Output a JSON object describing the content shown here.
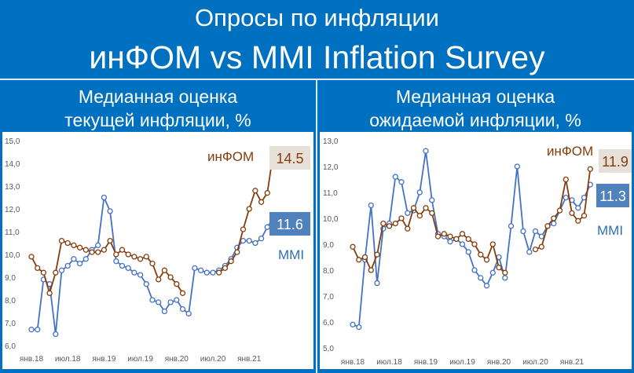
{
  "header": {
    "title_line1": "Опросы по инфляции",
    "title_line2": "инФОМ vs MMI Inflation Survey"
  },
  "colors": {
    "background": "#0070c0",
    "infom": "#843c0c",
    "mmi": "#4472c4",
    "mmi_label": "#2f6eba"
  },
  "chart_data": [
    {
      "type": "line",
      "title_line1": "Медианная оценка",
      "title_line2": "текущей инфляции, %",
      "ylim": [
        6.0,
        15.0
      ],
      "yticks": [
        "6,0",
        "7,0",
        "8,0",
        "9,0",
        "10,0",
        "11,0",
        "12,0",
        "13,0",
        "14,0",
        "15,0"
      ],
      "xticks": [
        {
          "label": "янв.18",
          "x": 0
        },
        {
          "label": "июл.18",
          "x": 6
        },
        {
          "label": "янв.19",
          "x": 12
        },
        {
          "label": "июл.19",
          "x": 18
        },
        {
          "label": "янв.20",
          "x": 24
        },
        {
          "label": "июл.20",
          "x": 30
        },
        {
          "label": "янв.21",
          "x": 36
        }
      ],
      "x_count": 41,
      "series": [
        {
          "name": "инФОМ",
          "end_value": "14.5",
          "values": [
            9.9,
            9.4,
            9.2,
            8.3,
            9.2,
            10.6,
            10.5,
            10.4,
            10.3,
            10.2,
            10.1,
            10.1,
            10.2,
            10.6,
            10.0,
            10.2,
            10.0,
            9.9,
            9.8,
            9.9,
            9.6,
            8.9,
            9.3,
            9.0,
            8.7,
            8.3,
            null,
            null,
            null,
            null,
            null,
            9.2,
            9.4,
            9.7,
            10.1,
            11.1,
            12.0,
            12.8,
            12.3,
            12.7,
            14.5
          ]
        },
        {
          "name": "MMI",
          "end_value": "11.6",
          "values": [
            6.7,
            6.7,
            8.9,
            8.7,
            6.5,
            9.3,
            9.5,
            9.8,
            9.6,
            9.8,
            10.2,
            10.4,
            12.5,
            11.9,
            9.7,
            9.5,
            9.4,
            9.2,
            9.1,
            8.7,
            8.0,
            7.9,
            7.5,
            7.9,
            8.0,
            7.6,
            7.4,
            9.4,
            9.3,
            9.2,
            9.2,
            9.3,
            9.5,
            9.8,
            10.3,
            10.6,
            10.6,
            10.5,
            10.7,
            11.2,
            11.6
          ]
        }
      ]
    },
    {
      "type": "line",
      "title_line1": "Медианная оценка",
      "title_line2": "ожидаемой инфляции, %",
      "ylim": [
        5.0,
        13.0
      ],
      "yticks": [
        "5,0",
        "6,0",
        "7,0",
        "8,0",
        "9,0",
        "10,0",
        "11,0",
        "12,0",
        "13,0"
      ],
      "xticks": [
        {
          "label": "янв.18",
          "x": 0
        },
        {
          "label": "июл.18",
          "x": 6
        },
        {
          "label": "янв.19",
          "x": 12
        },
        {
          "label": "июл.19",
          "x": 18
        },
        {
          "label": "янв.20",
          "x": 24
        },
        {
          "label": "июл.20",
          "x": 30
        },
        {
          "label": "янв.21",
          "x": 36
        }
      ],
      "x_count": 41,
      "series": [
        {
          "name": "инФОМ",
          "end_value": "11.9",
          "values": [
            8.9,
            8.4,
            8.5,
            8.0,
            8.6,
            9.8,
            9.7,
            9.8,
            10.0,
            9.6,
            10.4,
            10.1,
            10.4,
            10.2,
            9.3,
            9.4,
            9.3,
            9.2,
            9.4,
            9.2,
            9.0,
            8.6,
            8.4,
            9.0,
            8.1,
            7.9,
            null,
            null,
            null,
            null,
            8.8,
            8.9,
            9.7,
            10.0,
            10.3,
            11.5,
            10.2,
            9.9,
            10.1,
            11.9,
            null
          ]
        },
        {
          "name": "MMI",
          "end_value": "11.3",
          "values": [
            5.9,
            5.8,
            8.4,
            10.5,
            7.5,
            9.6,
            9.8,
            11.6,
            11.4,
            10.2,
            10.3,
            11.0,
            12.6,
            10.7,
            9.4,
            9.3,
            9.1,
            9.2,
            9.0,
            8.7,
            8.0,
            7.7,
            7.4,
            7.9,
            8.5,
            7.7,
            9.7,
            12.0,
            9.5,
            8.7,
            9.5,
            9.3,
            9.7,
            9.8,
            10.3,
            10.8,
            10.7,
            10.4,
            10.8,
            11.3,
            null
          ]
        }
      ]
    }
  ]
}
